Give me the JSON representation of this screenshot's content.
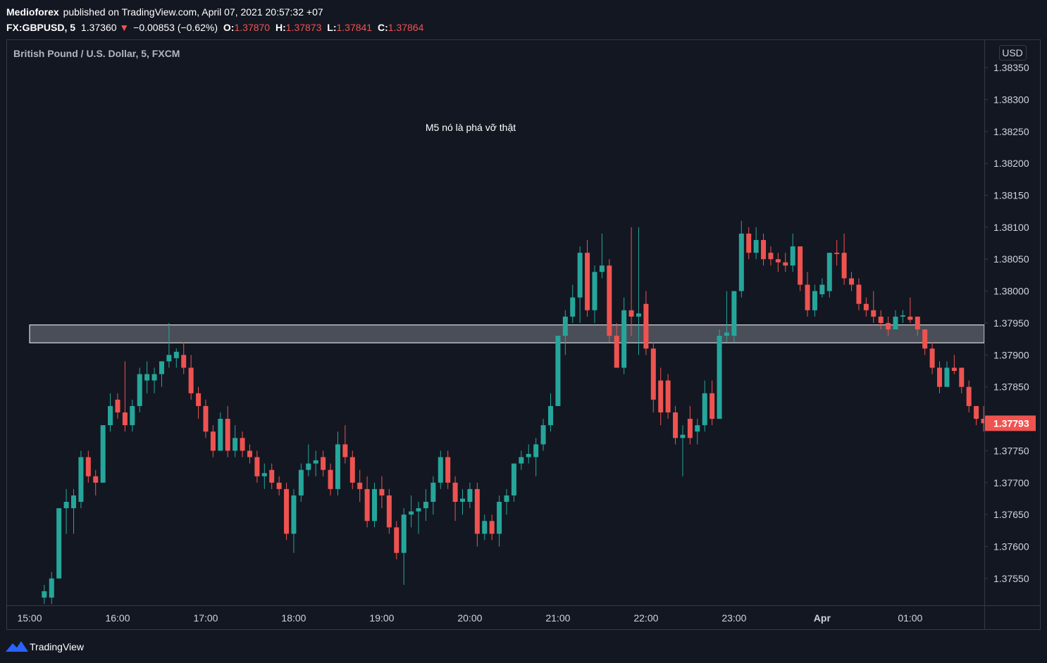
{
  "header": {
    "author": "Medioforex",
    "published": "published on TradingView.com, April 07, 2021 20:57:32 +07",
    "symbol": "FX:GBPUSD, 5",
    "price": "1.37360",
    "arrow": "▼",
    "change": "−0.00853 (−0.62%)",
    "ohlc_labels": [
      "O:",
      "H:",
      "L:",
      "C:"
    ],
    "ohlc_values": [
      "1.37870",
      "1.37873",
      "1.37841",
      "1.37864"
    ]
  },
  "footer": {
    "brand": "TradingView"
  },
  "chart_data": {
    "type": "candlestick",
    "legend": "British Pound / U.S. Dollar, 5, FXCM",
    "annotation": "M5 nó là phá vỡ thật",
    "currency": "USD",
    "up_color": "#26a69a",
    "down_color": "#ef5350",
    "categories": [
      "15:00",
      null,
      null,
      null,
      null,
      null,
      null,
      null,
      null,
      null,
      null,
      null,
      "16:00",
      null,
      null,
      null,
      null,
      null,
      null,
      null,
      null,
      null,
      null,
      null,
      "17:00",
      null,
      null,
      null,
      null,
      null,
      null,
      null,
      null,
      null,
      null,
      null,
      "18:00",
      null,
      null,
      null,
      null,
      null,
      null,
      null,
      null,
      null,
      null,
      null,
      "19:00",
      null,
      null,
      null,
      null,
      null,
      null,
      null,
      null,
      null,
      null,
      null,
      "20:00",
      null,
      null,
      null,
      null,
      null,
      null,
      null,
      null,
      null,
      null,
      null,
      "21:00",
      null,
      null,
      null,
      null,
      null,
      null,
      null,
      null,
      null,
      null,
      null,
      "22:00",
      null,
      null,
      null,
      null,
      null,
      null,
      null,
      null,
      null,
      null,
      null,
      "23:00",
      null,
      null,
      null,
      null,
      null,
      null,
      null,
      null,
      null,
      null,
      null,
      "Apr",
      null,
      null,
      null,
      null,
      null,
      null,
      null,
      null,
      null,
      null,
      null,
      "01:00",
      null,
      null,
      null,
      null,
      null,
      null,
      null,
      null,
      null,
      null
    ],
    "ohlc": [
      null,
      null,
      [
        1.3752,
        1.3754,
        1.3751,
        1.3753
      ],
      [
        1.3752,
        1.3756,
        1.3751,
        1.3755
      ],
      [
        1.3755,
        1.3766,
        1.3755,
        1.3766
      ],
      [
        1.3766,
        1.3769,
        1.3762,
        1.3767
      ],
      [
        1.3766,
        1.3769,
        1.3762,
        1.3768
      ],
      [
        1.3767,
        1.3775,
        1.3766,
        1.3774
      ],
      [
        1.3774,
        1.3775,
        1.377,
        1.3771
      ],
      [
        1.3771,
        1.3772,
        1.3768,
        1.377
      ],
      [
        1.377,
        1.3779,
        1.377,
        1.3779
      ],
      [
        1.3779,
        1.3784,
        1.3778,
        1.3782
      ],
      [
        1.3783,
        1.3784,
        1.378,
        1.3781
      ],
      [
        1.3781,
        1.3789,
        1.3778,
        1.3779
      ],
      [
        1.3779,
        1.3783,
        1.3778,
        1.3782
      ],
      [
        1.3782,
        1.3788,
        1.3781,
        1.3787
      ],
      [
        1.3786,
        1.3789,
        1.3784,
        1.3787
      ],
      [
        1.3786,
        1.3788,
        1.3784,
        1.3787
      ],
      [
        1.3787,
        1.3789,
        1.3785,
        1.3789
      ],
      [
        1.3789,
        1.3795,
        1.3788,
        1.379
      ],
      [
        1.37895,
        1.3791,
        1.3788,
        1.37905
      ],
      [
        1.379,
        1.3792,
        1.3787,
        1.3788
      ],
      [
        1.3788,
        1.379,
        1.3783,
        1.3784
      ],
      [
        1.3784,
        1.3785,
        1.378,
        1.3782
      ],
      [
        1.3782,
        1.3783,
        1.3777,
        1.3778
      ],
      [
        1.3778,
        1.3779,
        1.3774,
        1.3775
      ],
      [
        1.3775,
        1.3781,
        1.3775,
        1.378
      ],
      [
        1.378,
        1.3782,
        1.3774,
        1.3775
      ],
      [
        1.3775,
        1.3779,
        1.3774,
        1.3777
      ],
      [
        1.3777,
        1.3778,
        1.3774,
        1.3775
      ],
      [
        1.3775,
        1.3776,
        1.3773,
        1.3774
      ],
      [
        1.3774,
        1.3775,
        1.377,
        1.3771
      ],
      [
        1.3771,
        1.3773,
        1.3769,
        1.37715
      ],
      [
        1.3772,
        1.3773,
        1.3769,
        1.377
      ],
      [
        1.377,
        1.3771,
        1.3768,
        1.3769
      ],
      [
        1.3769,
        1.377,
        1.3761,
        1.3762
      ],
      [
        1.3762,
        1.3769,
        1.3759,
        1.3768
      ],
      [
        1.3768,
        1.3773,
        1.3767,
        1.3772
      ],
      [
        1.3772,
        1.3776,
        1.3771,
        1.3773
      ],
      [
        1.3773,
        1.3775,
        1.3771,
        1.37735
      ],
      [
        1.3774,
        1.3775,
        1.3771,
        1.3772
      ],
      [
        1.3772,
        1.3773,
        1.3768,
        1.3769
      ],
      [
        1.3769,
        1.3778,
        1.3768,
        1.3776
      ],
      [
        1.3776,
        1.3779,
        1.3773,
        1.3774
      ],
      [
        1.3774,
        1.3775,
        1.3769,
        1.377
      ],
      [
        1.377,
        1.3772,
        1.3767,
        1.3769
      ],
      [
        1.3769,
        1.3771,
        1.3763,
        1.3764
      ],
      [
        1.3764,
        1.377,
        1.3763,
        1.3769
      ],
      [
        1.3769,
        1.3771,
        1.3766,
        1.3768
      ],
      [
        1.3768,
        1.3769,
        1.3762,
        1.3763
      ],
      [
        1.3763,
        1.3764,
        1.3758,
        1.3759
      ],
      [
        1.3759,
        1.3766,
        1.3754,
        1.3765
      ],
      [
        1.3765,
        1.3768,
        1.3763,
        1.37655
      ],
      [
        1.37655,
        1.3767,
        1.3762,
        1.3766
      ],
      [
        1.3766,
        1.3769,
        1.3764,
        1.3767
      ],
      [
        1.3767,
        1.3771,
        1.3765,
        1.377
      ],
      [
        1.377,
        1.3775,
        1.3769,
        1.3774
      ],
      [
        1.3774,
        1.3775,
        1.3769,
        1.377
      ],
      [
        1.377,
        1.3771,
        1.3764,
        1.3767
      ],
      [
        1.3767,
        1.3769,
        1.3765,
        1.37675
      ],
      [
        1.3767,
        1.377,
        1.3766,
        1.3769
      ],
      [
        1.3769,
        1.377,
        1.376,
        1.3762
      ],
      [
        1.3762,
        1.3765,
        1.3761,
        1.3764
      ],
      [
        1.3764,
        1.3765,
        1.3761,
        1.3762
      ],
      [
        1.3762,
        1.3768,
        1.376,
        1.3767
      ],
      [
        1.3767,
        1.3769,
        1.3765,
        1.3768
      ],
      [
        1.3768,
        1.3773,
        1.3767,
        1.3773
      ],
      [
        1.3773,
        1.3775,
        1.3772,
        1.3774
      ],
      [
        1.3774,
        1.3776,
        1.3773,
        1.37745
      ],
      [
        1.3774,
        1.3777,
        1.3771,
        1.3776
      ],
      [
        1.3776,
        1.378,
        1.3775,
        1.3779
      ],
      [
        1.3779,
        1.3784,
        1.3778,
        1.3782
      ],
      [
        1.3782,
        1.3793,
        1.3782,
        1.3793
      ],
      [
        1.3793,
        1.3797,
        1.379,
        1.3796
      ],
      [
        1.3796,
        1.3801,
        1.3795,
        1.3799
      ],
      [
        1.3799,
        1.3807,
        1.3795,
        1.3806
      ],
      [
        1.3806,
        1.3808,
        1.3796,
        1.3797
      ],
      [
        1.3797,
        1.3804,
        1.3795,
        1.3803
      ],
      [
        1.3803,
        1.3809,
        1.3802,
        1.3804
      ],
      [
        1.3804,
        1.3805,
        1.3792,
        1.3793
      ],
      [
        1.3793,
        1.3795,
        1.3788,
        1.3788
      ],
      [
        1.3788,
        1.3799,
        1.3787,
        1.3797
      ],
      [
        1.3797,
        1.381,
        1.3793,
        1.3796
      ],
      [
        1.3796,
        1.381,
        1.379,
        1.37965
      ],
      [
        1.3798,
        1.38,
        1.379,
        1.3791
      ],
      [
        1.3791,
        1.3792,
        1.3781,
        1.3783
      ],
      [
        1.3786,
        1.3788,
        1.3779,
        1.3781
      ],
      [
        1.3786,
        1.3787,
        1.378,
        1.3781
      ],
      [
        1.3781,
        1.3782,
        1.3776,
        1.3777
      ],
      [
        1.3777,
        1.3779,
        1.3771,
        1.37775
      ],
      [
        1.378,
        1.3782,
        1.3776,
        1.3777
      ],
      [
        1.3778,
        1.378,
        1.3776,
        1.3779
      ],
      [
        1.3779,
        1.3786,
        1.3778,
        1.3784
      ],
      [
        1.3784,
        1.3786,
        1.3779,
        1.378
      ],
      [
        1.378,
        1.3794,
        1.378,
        1.3793
      ],
      [
        1.3793,
        1.38,
        1.3792,
        1.37935
      ],
      [
        1.3793,
        1.38,
        1.3792,
        1.38
      ],
      [
        1.38,
        1.3811,
        1.3799,
        1.3809
      ],
      [
        1.3809,
        1.381,
        1.3805,
        1.3806
      ],
      [
        1.3806,
        1.381,
        1.3805,
        1.3808
      ],
      [
        1.3808,
        1.3809,
        1.3804,
        1.3805
      ],
      [
        1.3806,
        1.3807,
        1.3804,
        1.3805
      ],
      [
        1.3805,
        1.3806,
        1.3803,
        1.38045
      ],
      [
        1.38045,
        1.3806,
        1.3803,
        1.3804
      ],
      [
        1.3804,
        1.3809,
        1.3803,
        1.3807
      ],
      [
        1.3807,
        1.3807,
        1.38,
        1.3801
      ],
      [
        1.3801,
        1.3803,
        1.3796,
        1.3797
      ],
      [
        1.3797,
        1.3801,
        1.3796,
        1.38
      ],
      [
        1.37995,
        1.3802,
        1.3799,
        1.3801
      ],
      [
        1.38,
        1.3806,
        1.3799,
        1.3806
      ],
      [
        1.3806,
        1.3808,
        1.3804,
        1.38058
      ],
      [
        1.3806,
        1.3809,
        1.3801,
        1.3802
      ],
      [
        1.3802,
        1.3803,
        1.38,
        1.3801
      ],
      [
        1.3801,
        1.3802,
        1.3797,
        1.3798
      ],
      [
        1.3798,
        1.3799,
        1.3796,
        1.3797
      ],
      [
        1.3797,
        1.38,
        1.3795,
        1.3796
      ],
      [
        1.3796,
        1.3797,
        1.3794,
        1.3795
      ],
      [
        1.3795,
        1.3796,
        1.3793,
        1.3794
      ],
      [
        1.3794,
        1.3797,
        1.3794,
        1.3796
      ],
      [
        1.3796,
        1.3797,
        1.3795,
        1.37962
      ],
      [
        1.3796,
        1.3799,
        1.3795,
        1.37955
      ],
      [
        1.3796,
        1.3796,
        1.3793,
        1.3794
      ],
      [
        1.3794,
        1.3794,
        1.379,
        1.3791
      ],
      [
        1.3791,
        1.3792,
        1.3787,
        1.3788
      ],
      [
        1.3788,
        1.3789,
        1.3784,
        1.3785
      ],
      [
        1.3785,
        1.3789,
        1.3785,
        1.3788
      ],
      [
        1.3788,
        1.379,
        1.3787,
        1.37875
      ],
      [
        1.3788,
        1.3788,
        1.3784,
        1.3785
      ],
      [
        1.3785,
        1.3786,
        1.3781,
        1.3782
      ],
      [
        1.3782,
        1.3782,
        1.3779,
        1.378
      ],
      [
        1.378,
        1.3782,
        1.3778,
        1.37793
      ]
    ],
    "zone": {
      "top": 1.37947,
      "bottom": 1.37919
    },
    "ylim": [
      1.37508,
      1.38393
    ],
    "yticks": [
      {
        "value": 1.3755,
        "label": "1.37550"
      },
      {
        "value": 1.376,
        "label": "1.37600"
      },
      {
        "value": 1.3765,
        "label": "1.37650"
      },
      {
        "value": 1.377,
        "label": "1.37700"
      },
      {
        "value": 1.3775,
        "label": "1.37750"
      },
      {
        "value": 1.378,
        "label": "1.37800"
      },
      {
        "value": 1.3785,
        "label": "1.37850"
      },
      {
        "value": 1.379,
        "label": "1.37900"
      },
      {
        "value": 1.3795,
        "label": "1.37950"
      },
      {
        "value": 1.38,
        "label": "1.38000"
      },
      {
        "value": 1.3805,
        "label": "1.38050"
      },
      {
        "value": 1.381,
        "label": "1.38100"
      },
      {
        "value": 1.3815,
        "label": "1.38150"
      },
      {
        "value": 1.382,
        "label": "1.38200"
      },
      {
        "value": 1.3825,
        "label": "1.38250"
      },
      {
        "value": 1.383,
        "label": "1.38300"
      },
      {
        "value": 1.3835,
        "label": "1.38350"
      }
    ]
  }
}
